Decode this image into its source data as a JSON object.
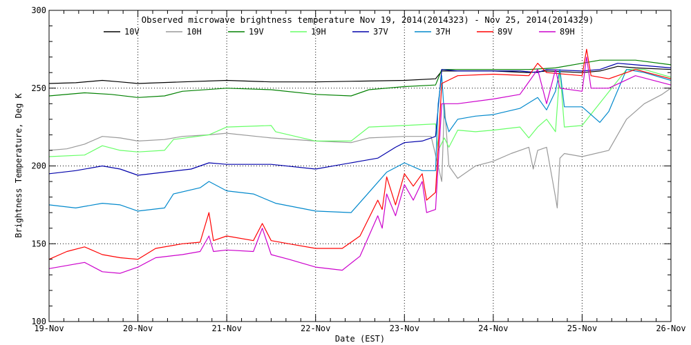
{
  "chart_data": {
    "type": "line",
    "title": "Observed microwave brightness temperature Nov 19, 2014(2014323) - Nov 25, 2014(2014329)",
    "xlabel": "Date (EST)",
    "ylabel": "Brightness Temperature, Deg K",
    "xlim": [
      0,
      7
    ],
    "ylim": [
      100,
      300
    ],
    "x_ticks": [
      "19-Nov",
      "20-Nov",
      "21-Nov",
      "22-Nov",
      "23-Nov",
      "24-Nov",
      "25-Nov",
      "26-Nov"
    ],
    "y_ticks": [
      100,
      150,
      200,
      250,
      300
    ],
    "grid": "dotted at major ticks",
    "legend": "top, inside plot, single row",
    "series": [
      {
        "name": "10V",
        "color": "#000000",
        "points": [
          [
            0,
            253
          ],
          [
            0.3,
            253.5
          ],
          [
            0.6,
            255
          ],
          [
            0.8,
            254
          ],
          [
            1.0,
            253
          ],
          [
            1.5,
            254
          ],
          [
            2.0,
            255
          ],
          [
            2.5,
            254
          ],
          [
            3.0,
            254
          ],
          [
            3.5,
            254.5
          ],
          [
            4.0,
            255
          ],
          [
            4.35,
            256
          ],
          [
            4.42,
            261
          ],
          [
            4.6,
            261
          ],
          [
            5.0,
            261
          ],
          [
            5.4,
            260
          ],
          [
            5.6,
            261
          ],
          [
            6.0,
            260
          ],
          [
            6.2,
            261
          ],
          [
            6.4,
            264
          ],
          [
            6.6,
            263
          ],
          [
            7.0,
            262
          ]
        ]
      },
      {
        "name": "10H",
        "color": "#999999",
        "points": [
          [
            0,
            210
          ],
          [
            0.2,
            211
          ],
          [
            0.4,
            214
          ],
          [
            0.6,
            219
          ],
          [
            0.8,
            218
          ],
          [
            1.0,
            216
          ],
          [
            1.3,
            217
          ],
          [
            1.5,
            219
          ],
          [
            1.8,
            220
          ],
          [
            2.0,
            221
          ],
          [
            2.5,
            218
          ],
          [
            3.0,
            216
          ],
          [
            3.4,
            215
          ],
          [
            3.6,
            218
          ],
          [
            4.0,
            219
          ],
          [
            4.3,
            219
          ],
          [
            4.38,
            200
          ],
          [
            4.42,
            190
          ],
          [
            4.45,
            240
          ],
          [
            4.5,
            200
          ],
          [
            4.6,
            192
          ],
          [
            4.8,
            200
          ],
          [
            5.0,
            203
          ],
          [
            5.2,
            208
          ],
          [
            5.4,
            212
          ],
          [
            5.45,
            198
          ],
          [
            5.5,
            210
          ],
          [
            5.6,
            212
          ],
          [
            5.7,
            180
          ],
          [
            5.72,
            173
          ],
          [
            5.75,
            205
          ],
          [
            5.8,
            208
          ],
          [
            6.0,
            206
          ],
          [
            6.3,
            210
          ],
          [
            6.5,
            230
          ],
          [
            6.7,
            240
          ],
          [
            6.9,
            246
          ],
          [
            7.0,
            250
          ]
        ]
      },
      {
        "name": "19V",
        "color": "#008000",
        "points": [
          [
            0,
            245
          ],
          [
            0.4,
            247
          ],
          [
            0.7,
            246
          ],
          [
            1.0,
            244
          ],
          [
            1.3,
            245
          ],
          [
            1.5,
            248
          ],
          [
            2.0,
            250
          ],
          [
            2.5,
            249
          ],
          [
            3.0,
            246
          ],
          [
            3.4,
            245
          ],
          [
            3.6,
            249
          ],
          [
            4.0,
            251
          ],
          [
            4.35,
            252
          ],
          [
            4.42,
            262
          ],
          [
            4.6,
            262
          ],
          [
            5.0,
            262
          ],
          [
            5.4,
            262
          ],
          [
            5.7,
            263
          ],
          [
            6.0,
            266
          ],
          [
            6.2,
            268
          ],
          [
            6.4,
            268
          ],
          [
            6.6,
            268
          ],
          [
            7.0,
            265
          ]
        ]
      },
      {
        "name": "19H",
        "color": "#66ff66",
        "points": [
          [
            0,
            206
          ],
          [
            0.4,
            207
          ],
          [
            0.6,
            213
          ],
          [
            0.8,
            210
          ],
          [
            1.0,
            209
          ],
          [
            1.3,
            210
          ],
          [
            1.4,
            217
          ],
          [
            1.8,
            220
          ],
          [
            2.0,
            225
          ],
          [
            2.5,
            226
          ],
          [
            2.55,
            222
          ],
          [
            3.0,
            216
          ],
          [
            3.4,
            216
          ],
          [
            3.6,
            225
          ],
          [
            4.0,
            226
          ],
          [
            4.35,
            227
          ],
          [
            4.38,
            210
          ],
          [
            4.45,
            218
          ],
          [
            4.5,
            212
          ],
          [
            4.6,
            223
          ],
          [
            4.8,
            222
          ],
          [
            5.0,
            223
          ],
          [
            5.3,
            225
          ],
          [
            5.4,
            218
          ],
          [
            5.5,
            225
          ],
          [
            5.6,
            230
          ],
          [
            5.7,
            222
          ],
          [
            5.75,
            262
          ],
          [
            5.8,
            225
          ],
          [
            6.0,
            226
          ],
          [
            6.5,
            262
          ],
          [
            6.7,
            262
          ],
          [
            7.0,
            257
          ]
        ]
      },
      {
        "name": "37V",
        "color": "#0000aa",
        "points": [
          [
            0,
            195
          ],
          [
            0.3,
            197
          ],
          [
            0.6,
            200
          ],
          [
            0.8,
            198
          ],
          [
            1.0,
            194
          ],
          [
            1.3,
            196
          ],
          [
            1.6,
            198
          ],
          [
            1.8,
            202
          ],
          [
            2.0,
            201
          ],
          [
            2.5,
            201
          ],
          [
            3.0,
            198
          ],
          [
            3.3,
            201
          ],
          [
            3.5,
            203
          ],
          [
            3.7,
            205
          ],
          [
            3.9,
            212
          ],
          [
            4.0,
            215
          ],
          [
            4.2,
            216
          ],
          [
            4.35,
            219
          ],
          [
            4.42,
            262
          ],
          [
            4.6,
            261
          ],
          [
            5.0,
            261
          ],
          [
            5.3,
            261
          ],
          [
            5.5,
            260
          ],
          [
            5.6,
            262
          ],
          [
            6.0,
            261
          ],
          [
            6.2,
            262
          ],
          [
            6.4,
            266
          ],
          [
            6.6,
            265
          ],
          [
            7.0,
            263
          ]
        ]
      },
      {
        "name": "37H",
        "color": "#0088cc",
        "points": [
          [
            0,
            175
          ],
          [
            0.3,
            173
          ],
          [
            0.6,
            176
          ],
          [
            0.8,
            175
          ],
          [
            1.0,
            171
          ],
          [
            1.3,
            173
          ],
          [
            1.4,
            182
          ],
          [
            1.7,
            186
          ],
          [
            1.8,
            190
          ],
          [
            2.0,
            184
          ],
          [
            2.3,
            182
          ],
          [
            2.55,
            176
          ],
          [
            3.0,
            171
          ],
          [
            3.4,
            170
          ],
          [
            3.6,
            183
          ],
          [
            3.8,
            196
          ],
          [
            4.0,
            202
          ],
          [
            4.2,
            197
          ],
          [
            4.35,
            197
          ],
          [
            4.38,
            240
          ],
          [
            4.42,
            258
          ],
          [
            4.45,
            232
          ],
          [
            4.5,
            222
          ],
          [
            4.6,
            230
          ],
          [
            4.8,
            232
          ],
          [
            5.0,
            233
          ],
          [
            5.3,
            237
          ],
          [
            5.5,
            244
          ],
          [
            5.6,
            236
          ],
          [
            5.7,
            248
          ],
          [
            5.75,
            262
          ],
          [
            5.8,
            238
          ],
          [
            6.0,
            238
          ],
          [
            6.2,
            228
          ],
          [
            6.3,
            235
          ],
          [
            6.5,
            262
          ],
          [
            6.7,
            260
          ],
          [
            7.0,
            255
          ]
        ]
      },
      {
        "name": "89V",
        "color": "#ff0000",
        "points": [
          [
            0,
            140
          ],
          [
            0.2,
            145
          ],
          [
            0.4,
            148
          ],
          [
            0.6,
            143
          ],
          [
            0.8,
            141
          ],
          [
            1.0,
            140
          ],
          [
            1.2,
            147
          ],
          [
            1.5,
            150
          ],
          [
            1.7,
            151
          ],
          [
            1.8,
            170
          ],
          [
            1.85,
            152
          ],
          [
            2.0,
            155
          ],
          [
            2.3,
            152
          ],
          [
            2.4,
            163
          ],
          [
            2.5,
            152
          ],
          [
            2.7,
            150
          ],
          [
            3.0,
            147
          ],
          [
            3.3,
            147
          ],
          [
            3.5,
            155
          ],
          [
            3.7,
            178
          ],
          [
            3.75,
            172
          ],
          [
            3.8,
            193
          ],
          [
            3.9,
            175
          ],
          [
            4.0,
            195
          ],
          [
            4.1,
            187
          ],
          [
            4.2,
            195
          ],
          [
            4.25,
            178
          ],
          [
            4.35,
            183
          ],
          [
            4.42,
            253
          ],
          [
            4.6,
            258
          ],
          [
            5.0,
            259
          ],
          [
            5.4,
            258
          ],
          [
            5.5,
            266
          ],
          [
            5.6,
            260
          ],
          [
            6.0,
            258
          ],
          [
            6.05,
            275
          ],
          [
            6.1,
            258
          ],
          [
            6.3,
            256
          ],
          [
            6.6,
            262
          ],
          [
            7.0,
            256
          ]
        ]
      },
      {
        "name": "89H",
        "color": "#cc00cc",
        "points": [
          [
            0,
            134
          ],
          [
            0.2,
            136
          ],
          [
            0.4,
            138
          ],
          [
            0.6,
            132
          ],
          [
            0.8,
            131
          ],
          [
            1.0,
            135
          ],
          [
            1.2,
            141
          ],
          [
            1.5,
            143
          ],
          [
            1.7,
            145
          ],
          [
            1.8,
            155
          ],
          [
            1.85,
            145
          ],
          [
            2.0,
            146
          ],
          [
            2.3,
            145
          ],
          [
            2.4,
            160
          ],
          [
            2.5,
            143
          ],
          [
            2.7,
            140
          ],
          [
            3.0,
            135
          ],
          [
            3.3,
            133
          ],
          [
            3.5,
            142
          ],
          [
            3.7,
            168
          ],
          [
            3.75,
            160
          ],
          [
            3.8,
            182
          ],
          [
            3.9,
            168
          ],
          [
            4.0,
            188
          ],
          [
            4.1,
            178
          ],
          [
            4.2,
            190
          ],
          [
            4.25,
            170
          ],
          [
            4.35,
            172
          ],
          [
            4.42,
            240
          ],
          [
            4.6,
            240
          ],
          [
            5.0,
            243
          ],
          [
            5.3,
            246
          ],
          [
            5.5,
            262
          ],
          [
            5.6,
            240
          ],
          [
            5.7,
            262
          ],
          [
            5.75,
            250
          ],
          [
            6.0,
            248
          ],
          [
            6.05,
            270
          ],
          [
            6.1,
            250
          ],
          [
            6.3,
            250
          ],
          [
            6.6,
            258
          ],
          [
            7.0,
            252
          ]
        ]
      }
    ]
  }
}
